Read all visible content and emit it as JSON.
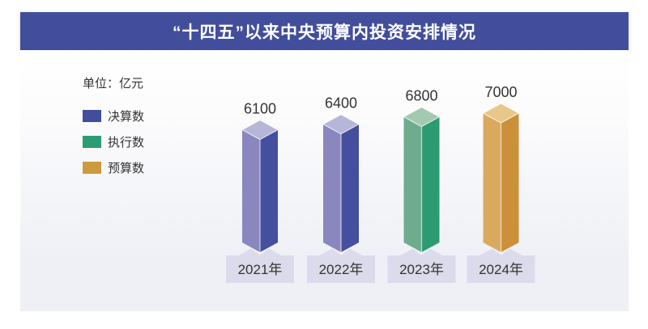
{
  "title": "“十四五”以来中央预算内投资安排情况",
  "title_bar_color": "#424E9C",
  "legend": {
    "unit": "单位：亿元",
    "items": [
      {
        "label": "决算数",
        "color": "#424E9C"
      },
      {
        "label": "执行数",
        "color": "#2A9D72"
      },
      {
        "label": "预算数",
        "color": "#CE9A3E"
      }
    ]
  },
  "chart_data": {
    "type": "bar",
    "title": "“十四五”以来中央预算内投资安排情况",
    "unit": "亿元",
    "categories": [
      "2021年",
      "2022年",
      "2023年",
      "2024年"
    ],
    "values": [
      6100,
      6400,
      6800,
      7000
    ],
    "ylim": [
      0,
      7000
    ],
    "legend_position": "left",
    "grid": false,
    "bars": [
      {
        "category": "2021年",
        "series": "决算数",
        "value": 6100
      },
      {
        "category": "2022年",
        "series": "决算数",
        "value": 6400
      },
      {
        "category": "2023年",
        "series": "执行数",
        "value": 6800
      },
      {
        "category": "2024年",
        "series": "预算数",
        "value": 7000
      }
    ],
    "palette": {
      "决算数": {
        "left": "#8A87BE",
        "right": "#454F9E",
        "top": "#B5B6D8"
      },
      "执行数": {
        "left": "#6FAC8D",
        "right": "#2C9B72",
        "top": "#A3CAB1"
      },
      "预算数": {
        "left": "#D9A95D",
        "right": "#CA9138",
        "top": "#E9C78A"
      }
    },
    "plate_color": "#DCDBEB",
    "text_color": "#333333"
  }
}
